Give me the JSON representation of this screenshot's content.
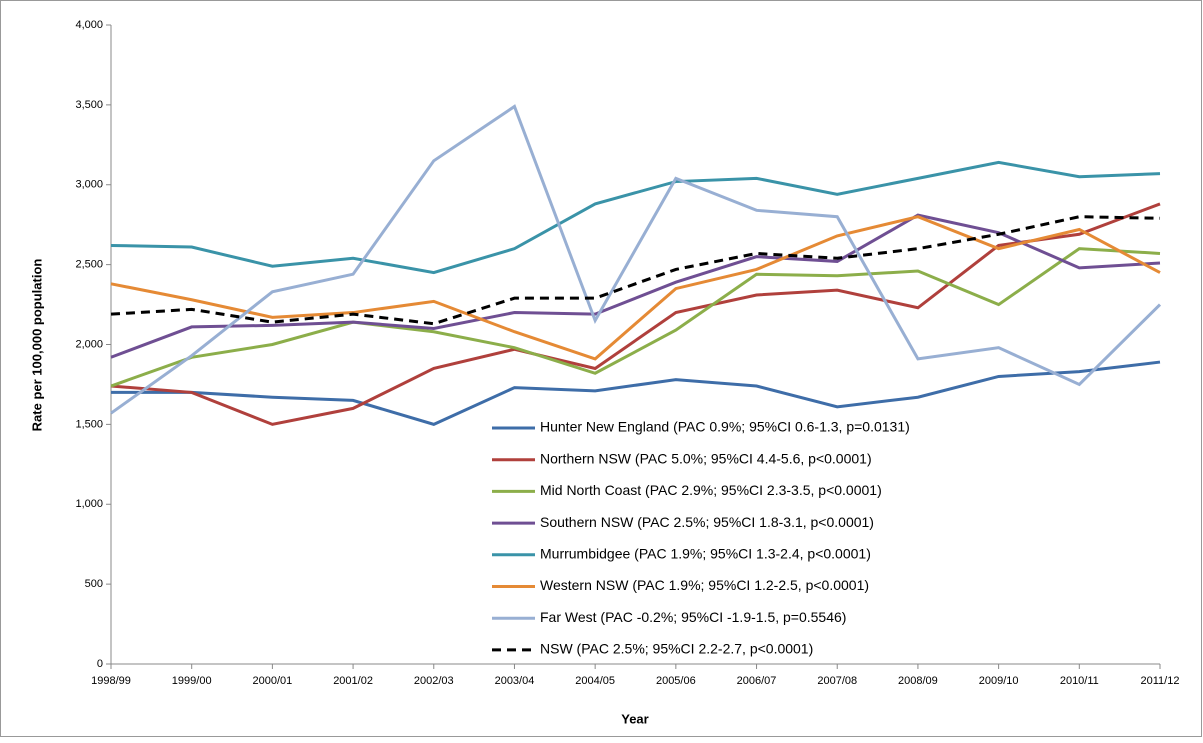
{
  "chart_data": {
    "type": "line",
    "y_label": "Rate per 100,000 population",
    "x_label": "Year",
    "categories": [
      "1998/99",
      "1999/00",
      "2000/01",
      "2001/02",
      "2002/03",
      "2003/04",
      "2004/05",
      "2005/06",
      "2006/07",
      "2007/08",
      "2008/09",
      "2009/10",
      "2010/11",
      "2011/12"
    ],
    "ylim": [
      0,
      4000
    ],
    "yticks": [
      0,
      500,
      {
        "value": 1000,
        "label": "1,000"
      },
      {
        "value": 1500,
        "label": "1,500"
      },
      {
        "value": 2000,
        "label": "2,000"
      },
      {
        "value": 2500,
        "label": "2,500"
      },
      {
        "value": 3000,
        "label": "3,000"
      },
      {
        "value": 3500,
        "label": "3,500"
      },
      {
        "value": 4000,
        "label": "4,000"
      }
    ],
    "series": [
      {
        "name": "Hunter New England (PAC 0.9%; 95%CI 0.6-1.3, p=0.0131)",
        "color": "#3e6da8",
        "values": [
          1700,
          1700,
          1670,
          1650,
          1500,
          1730,
          1710,
          1780,
          1740,
          1610,
          1670,
          1800,
          1830,
          1890
        ]
      },
      {
        "name": "Northern NSW (PAC 5.0%; 95%CI 4.4-5.6, p<0.0001)",
        "color": "#b0403c",
        "values": [
          1740,
          1700,
          1500,
          1600,
          1850,
          1970,
          1850,
          2200,
          2310,
          2340,
          2230,
          2620,
          2690,
          2880
        ]
      },
      {
        "name": "Mid North Coast (PAC 2.9%; 95%CI 2.3-3.5, p<0.0001)",
        "color": "#8cae4a",
        "values": [
          1740,
          1920,
          2000,
          2140,
          2080,
          1980,
          1820,
          2090,
          2440,
          2430,
          2460,
          2250,
          2600,
          2570
        ]
      },
      {
        "name": "Southern NSW (PAC 2.5%; 95%CI 1.8-3.1, p<0.0001)",
        "color": "#6f4f93",
        "values": [
          1920,
          2110,
          2120,
          2140,
          2100,
          2200,
          2190,
          2390,
          2550,
          2520,
          2810,
          2700,
          2480,
          2510
        ]
      },
      {
        "name": "Murrumbidgee (PAC 1.9%; 95%CI 1.3-2.4, p<0.0001)",
        "color": "#3a93a8",
        "values": [
          2620,
          2610,
          2490,
          2540,
          2450,
          2600,
          2880,
          3020,
          3040,
          2940,
          3040,
          3140,
          3050,
          3070
        ]
      },
      {
        "name": "Western NSW  (PAC 1.9%; 95%CI 1.2-2.5, p<0.0001)",
        "color": "#e58a35",
        "values": [
          2380,
          2280,
          2170,
          2200,
          2270,
          2080,
          1910,
          2350,
          2470,
          2680,
          2800,
          2600,
          2720,
          2450
        ]
      },
      {
        "name": "Far West (PAC -0.2%; 95%CI -1.9-1.5, p=0.5546)",
        "color": "#98afd3",
        "values": [
          1570,
          1930,
          2330,
          2440,
          3150,
          3490,
          2150,
          3040,
          2840,
          2800,
          1910,
          1980,
          1750,
          2250
        ]
      },
      {
        "name": "NSW (PAC 2.5%; 95%CI 2.2-2.7, p<0.0001)",
        "color": "#000000",
        "dashed": true,
        "values": [
          2190,
          2220,
          2140,
          2190,
          2130,
          2290,
          2290,
          2470,
          2570,
          2540,
          2600,
          2690,
          2800,
          2790
        ]
      }
    ]
  }
}
